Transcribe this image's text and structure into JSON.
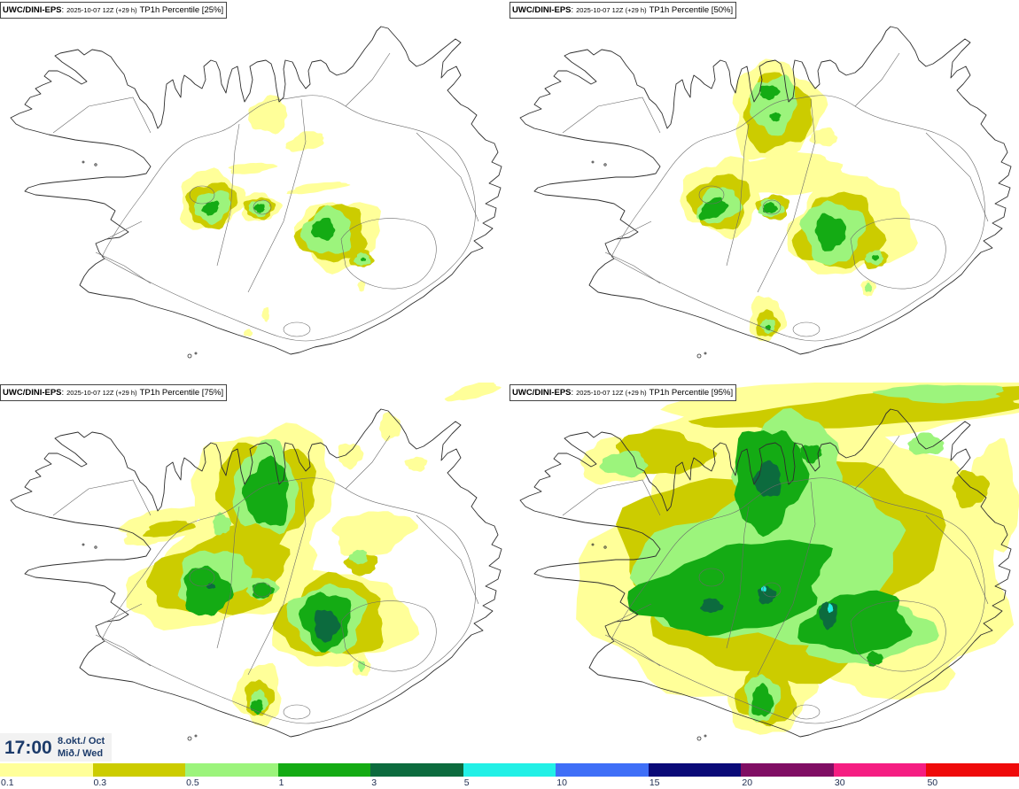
{
  "panels": [
    {
      "model": "UWC/DINI-EPS",
      "separator": ":",
      "run": "2025-10-07 12Z (+29 h)",
      "param": "TP1h Percentile [25%]"
    },
    {
      "model": "UWC/DINI-EPS",
      "separator": ":",
      "run": "2025-10-07 12Z (+29 h)",
      "param": "TP1h Percentile [50%]"
    },
    {
      "model": "UWC/DINI-EPS",
      "separator": ":",
      "run": "2025-10-07 12Z (+29 h)",
      "param": "TP1h Percentile [75%]"
    },
    {
      "model": "UWC/DINI-EPS",
      "separator": ":",
      "run": "2025-10-07 12Z (+29 h)",
      "param": "TP1h Percentile [95%]"
    }
  ],
  "valid_time": {
    "time": "17:00",
    "date": "8.okt./ Oct",
    "weekday": "Mið./ Wed"
  },
  "colorbar": {
    "labels": [
      "0.1",
      "0.3",
      "0.5",
      "1",
      "3",
      "5",
      "10",
      "15",
      "20",
      "30",
      "50"
    ],
    "colors": [
      "#ffff99",
      "#cccc00",
      "#9cf47c",
      "#14ab14",
      "#0c6b3e",
      "#22f0e6",
      "#3f6ff7",
      "#0a0a78",
      "#800e64",
      "#f51e82",
      "#ef0a0a"
    ]
  }
}
